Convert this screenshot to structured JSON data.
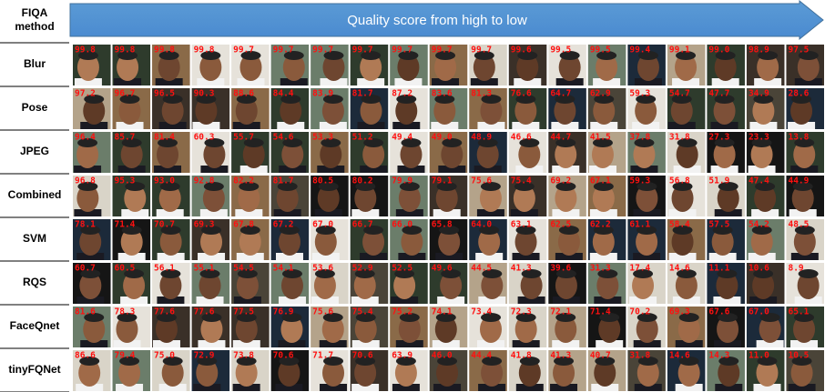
{
  "header": {
    "method_label": "FIQA method",
    "arrow_text": "Quality score from high to low"
  },
  "rows": [
    {
      "method": "Blur",
      "scores": [
        "99.8",
        "99.8",
        "99.8",
        "99.8",
        "99.7",
        "99.7",
        "99.7",
        "99.7",
        "99.7",
        "99.7",
        "99.7",
        "99.6",
        "99.5",
        "99.5",
        "99.4",
        "99.1",
        "99.0",
        "98.9",
        "97.5"
      ]
    },
    {
      "method": "Pose",
      "scores": [
        "97.2",
        "96.7",
        "96.5",
        "90.3",
        "88.6",
        "84.4",
        "83.9",
        "81.7",
        "87.2",
        "83.6",
        "81.3",
        "76.6",
        "64.7",
        "62.9",
        "59.3",
        "54.7",
        "47.7",
        "34.9",
        "28.6"
      ]
    },
    {
      "method": "JPEG",
      "scores": [
        "96.4",
        "85.7",
        "81.4",
        "60.3",
        "55.7",
        "54.6",
        "53.3",
        "51.2",
        "49.4",
        "49.0",
        "48.9",
        "46.6",
        "44.7",
        "41.5",
        "37.8",
        "31.8",
        "27.3",
        "23.3",
        "13.8"
      ]
    },
    {
      "method": "Combined",
      "scores": [
        "96.8",
        "95.3",
        "93.0",
        "92.8",
        "82.2",
        "81.7",
        "80.5",
        "80.2",
        "79.9",
        "79.1",
        "75.6",
        "75.4",
        "69.2",
        "67.1",
        "59.3",
        "56.8",
        "51.9",
        "47.4",
        "44.9"
      ]
    },
    {
      "method": "SVM",
      "scores": [
        "78.1",
        "71.4",
        "70.7",
        "69.3",
        "67.8",
        "67.2",
        "67.0",
        "66.7",
        "66.0",
        "65.8",
        "64.0",
        "63.1",
        "62.5",
        "62.2",
        "61.1",
        "58.4",
        "57.5",
        "54.2",
        "48.5"
      ]
    },
    {
      "method": "RQS",
      "scores": [
        "60.7",
        "60.5",
        "56.1",
        "55.1",
        "54.5",
        "54.1",
        "53.6",
        "52.9",
        "52.5",
        "49.6",
        "44.5",
        "41.3",
        "39.6",
        "31.3",
        "17.4",
        "14.6",
        "11.1",
        "10.6",
        "8.9"
      ]
    },
    {
      "method": "FaceQnet",
      "scores": [
        "81.6",
        "78.3",
        "77.6",
        "77.6",
        "77.5",
        "76.9",
        "75.6",
        "75.4",
        "75.2",
        "74.1",
        "73.4",
        "72.3",
        "72.1",
        "71.4",
        "70.2",
        "69.3",
        "67.6",
        "67.0",
        "65.1"
      ]
    },
    {
      "method": "tinyFQNet",
      "scores": [
        "86.6",
        "79.4",
        "75.0",
        "72.9",
        "73.8",
        "70.6",
        "71.7",
        "70.6",
        "63.9",
        "46.0",
        "44.4",
        "41.8",
        "41.3",
        "40.7",
        "31.8",
        "14.6",
        "14.3",
        "11.0",
        "10.5"
      ]
    }
  ]
}
